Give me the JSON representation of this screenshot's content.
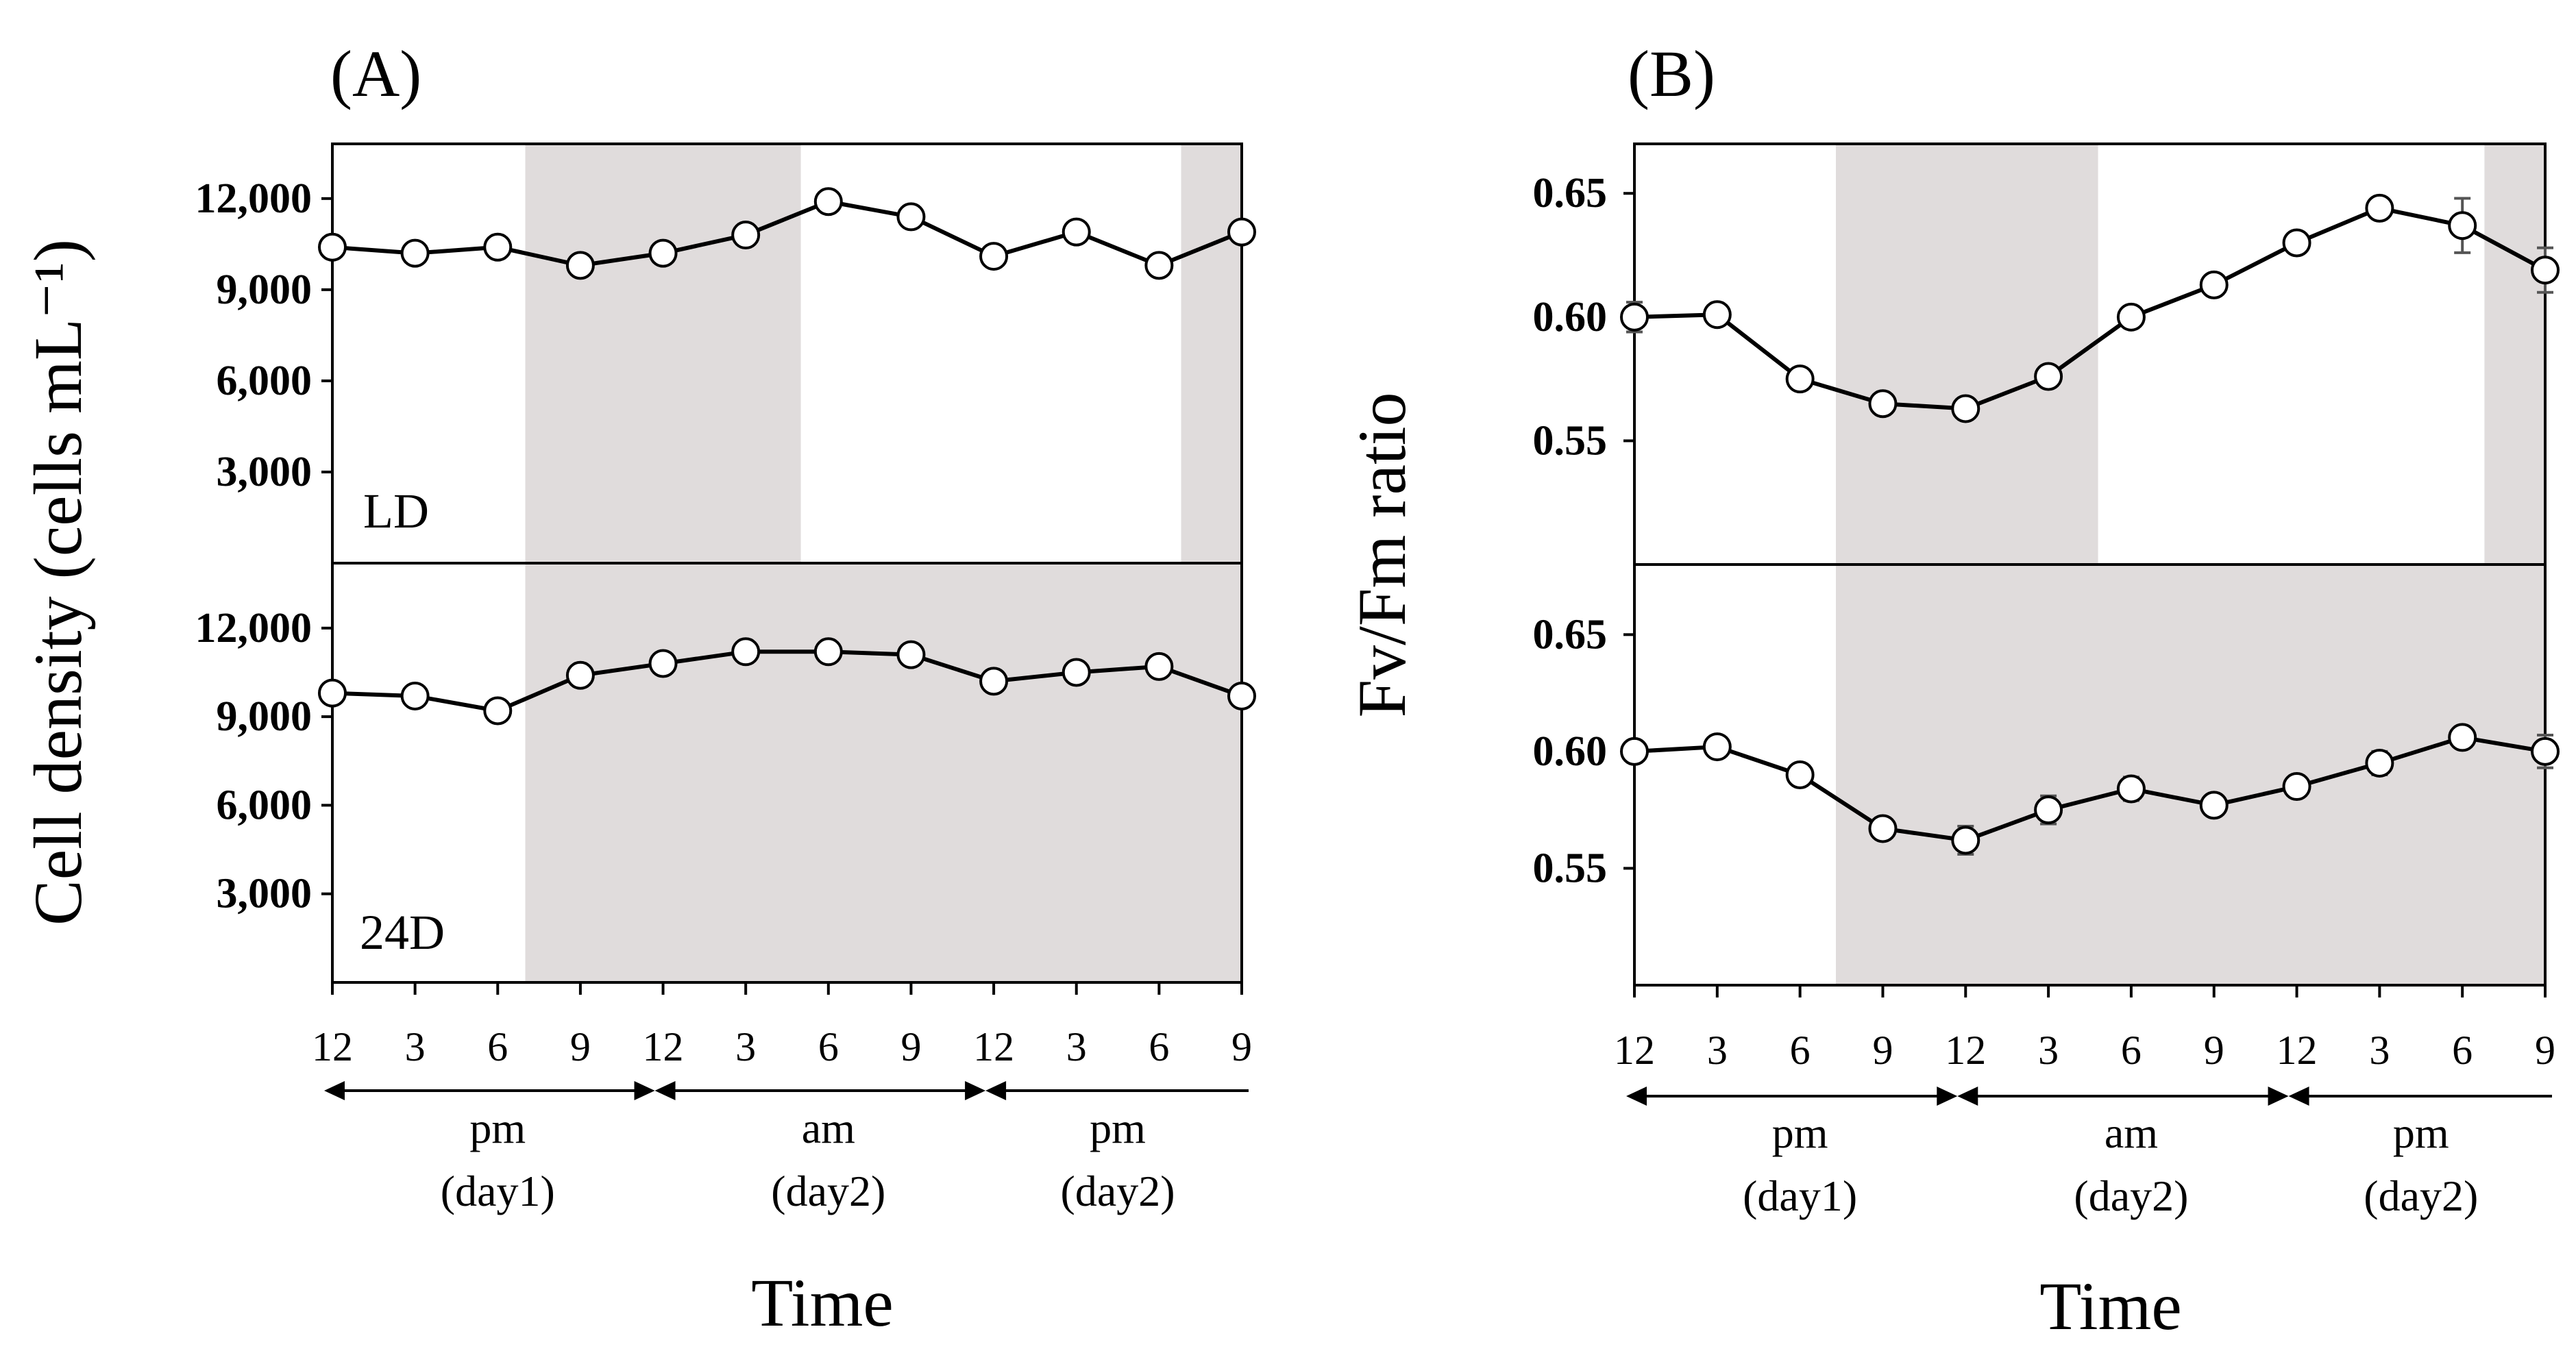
{
  "chart_data": [
    {
      "type": "line",
      "panel_label": "(A)",
      "ylabel": "Cell density (cells mL⁻¹)",
      "xlabel": "Time",
      "x_hours": [
        0,
        3,
        6,
        9,
        12,
        15,
        18,
        21,
        24,
        27,
        30,
        33
      ],
      "x_tick_labels": [
        "12",
        "3",
        "6",
        "9",
        "12",
        "3",
        "6",
        "9",
        "12",
        "3",
        "6",
        "9"
      ],
      "periods": [
        {
          "label": "pm",
          "sub": "(day1)",
          "from_hour": 0,
          "to_hour": 12
        },
        {
          "label": "am",
          "sub": "(day2)",
          "from_hour": 12,
          "to_hour": 24
        },
        {
          "label": "pm",
          "sub": "(day2)",
          "from_hour": 24,
          "to_hour": 33
        }
      ],
      "subplots": [
        {
          "condition": "LD",
          "ylim": [
            0,
            13800
          ],
          "y_ticks": [
            3000,
            6000,
            9000,
            12000
          ],
          "y_tick_labels": [
            "3,000",
            "6,000",
            "9,000",
            "12,000"
          ],
          "dark_periods_hours": [
            [
              7,
              17
            ],
            [
              30.8,
              33
            ]
          ],
          "values": [
            10400,
            10200,
            10400,
            9800,
            10200,
            10800,
            11900,
            11400,
            10100,
            10900,
            9800,
            10900
          ],
          "errors": [
            0,
            0,
            0,
            0,
            0,
            0,
            0,
            0,
            0,
            0,
            0,
            0
          ]
        },
        {
          "condition": "24D",
          "ylim": [
            0,
            14200
          ],
          "y_ticks": [
            3000,
            6000,
            9000,
            12000
          ],
          "y_tick_labels": [
            "3,000",
            "6,000",
            "9,000",
            "12,000"
          ],
          "dark_periods_hours": [
            [
              7,
              33
            ]
          ],
          "values": [
            9800,
            9700,
            9200,
            10400,
            10800,
            11200,
            11200,
            11100,
            10200,
            10500,
            10700,
            9700
          ],
          "errors": [
            0,
            0,
            0,
            0,
            0,
            0,
            0,
            0,
            0,
            0,
            0,
            0
          ]
        }
      ]
    },
    {
      "type": "line",
      "panel_label": "(B)",
      "ylabel": "Fv/Fm ratio",
      "xlabel": "Time",
      "x_hours": [
        0,
        3,
        6,
        9,
        12,
        15,
        18,
        21,
        24,
        27,
        30,
        33
      ],
      "x_tick_labels": [
        "12",
        "3",
        "6",
        "9",
        "12",
        "3",
        "6",
        "9",
        "12",
        "3",
        "6",
        "9"
      ],
      "periods": [
        {
          "label": "pm",
          "sub": "(day1)",
          "from_hour": 0,
          "to_hour": 12
        },
        {
          "label": "am",
          "sub": "(day2)",
          "from_hour": 12,
          "to_hour": 24
        },
        {
          "label": "pm",
          "sub": "(day2)",
          "from_hour": 24,
          "to_hour": 33
        }
      ],
      "subplots": [
        {
          "condition": "LD",
          "ylim": [
            0.5,
            0.67
          ],
          "y_ticks": [
            0.55,
            0.6,
            0.65
          ],
          "y_tick_labels": [
            "0.55",
            "0.60",
            "0.65"
          ],
          "dark_periods_hours": [
            [
              7.3,
              16.8
            ],
            [
              30.8,
              33
            ]
          ],
          "values": [
            0.6,
            0.601,
            0.575,
            0.565,
            0.563,
            0.576,
            0.6,
            0.613,
            0.63,
            0.644,
            0.637,
            0.619
          ],
          "errors": [
            0.006,
            0.002,
            0.003,
            0.002,
            0.002,
            0.003,
            0.003,
            0.002,
            0.002,
            0.002,
            0.011,
            0.009
          ]
        },
        {
          "condition": "24D",
          "ylim": [
            0.5,
            0.68
          ],
          "y_ticks": [
            0.55,
            0.6,
            0.65
          ],
          "y_tick_labels": [
            "0.55",
            "0.60",
            "0.65"
          ],
          "dark_periods_hours": [
            [
              7.3,
              33
            ]
          ],
          "values": [
            0.6,
            0.602,
            0.59,
            0.567,
            0.562,
            0.575,
            0.584,
            0.577,
            0.585,
            0.595,
            0.606,
            0.6
          ],
          "errors": [
            0.003,
            0.002,
            0.004,
            0.003,
            0.006,
            0.006,
            0.005,
            0.003,
            0.003,
            0.005,
            0.003,
            0.007
          ]
        }
      ]
    }
  ]
}
